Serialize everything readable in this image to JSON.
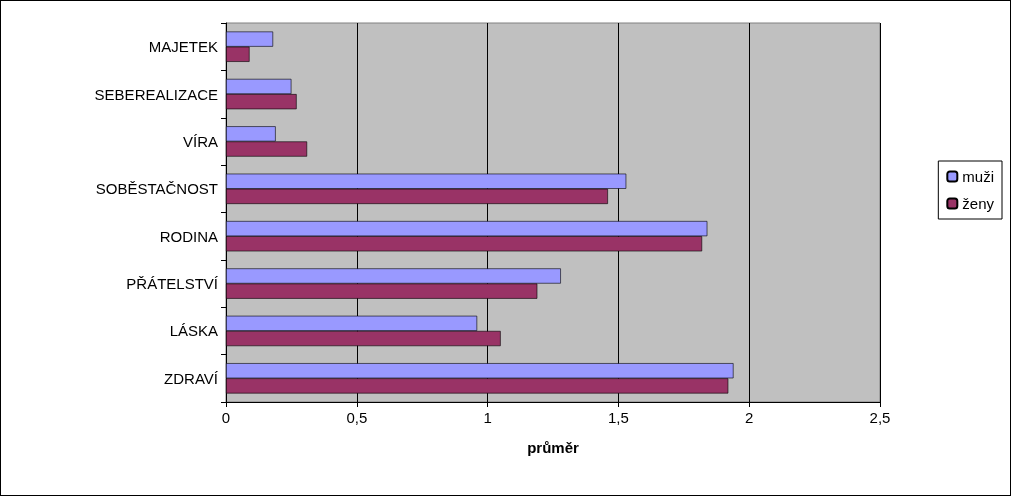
{
  "chart_data": {
    "type": "bar",
    "orientation": "horizontal",
    "xlabel": "průměr",
    "categories": [
      "MAJETEK",
      "SEBEREALIZACE",
      "VÍRA",
      "SOBĚSTAČNOST",
      "RODINA",
      "PŘÁTELSTVÍ",
      "LÁSKA",
      "ZDRAVÍ"
    ],
    "series": [
      {
        "name": "muži",
        "color": "#9999ff",
        "values": [
          0.18,
          0.25,
          0.19,
          1.53,
          1.84,
          1.28,
          0.96,
          1.94
        ]
      },
      {
        "name": "ženy",
        "color": "#993366",
        "values": [
          0.09,
          0.27,
          0.31,
          1.46,
          1.82,
          1.19,
          1.05,
          1.92
        ]
      }
    ],
    "xlim": [
      0,
      2.5
    ],
    "xticks": [
      0,
      {
        "value": 0.5,
        "label": "0,5"
      },
      1,
      {
        "value": 1.5,
        "label": "1,5"
      },
      2,
      {
        "value": 2.5,
        "label": "2,5"
      }
    ],
    "grid": "x",
    "legend": "right"
  }
}
